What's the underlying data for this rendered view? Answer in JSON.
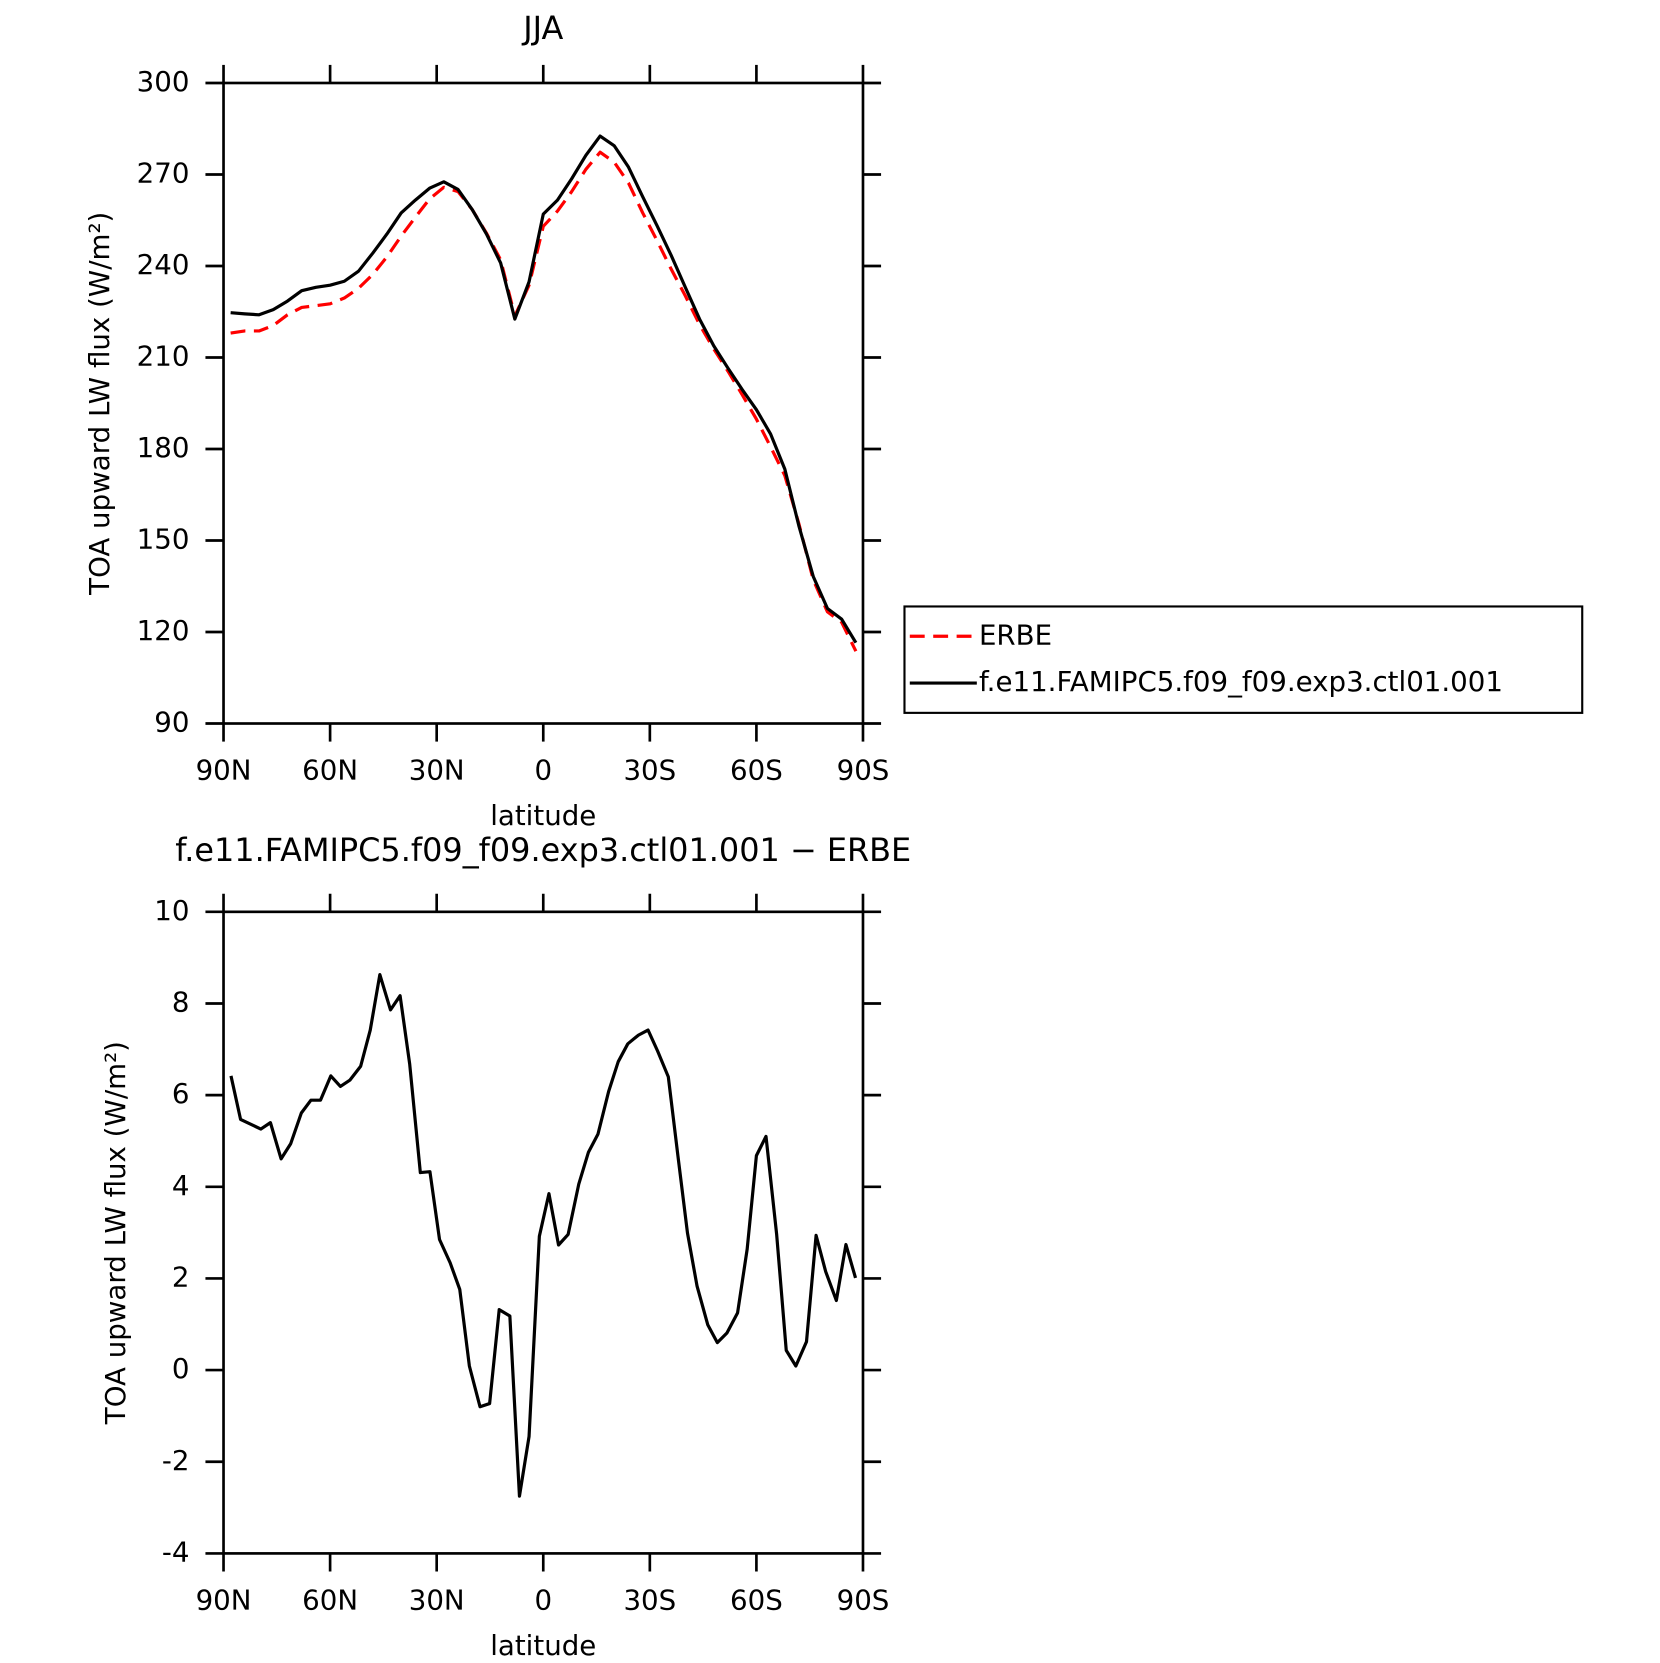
{
  "chart_data": [
    {
      "type": "line",
      "title": "JJA",
      "xlabel": "latitude",
      "ylabel": "TOA upward LW flux (W/m²)",
      "x": [
        88,
        84,
        80,
        76,
        72,
        68,
        64,
        60,
        56,
        52,
        48,
        44,
        40,
        36,
        32,
        28,
        24,
        20,
        16,
        12,
        8,
        4,
        0,
        -4,
        -8,
        -12,
        -16,
        -20,
        -24,
        -28,
        -32,
        -36,
        -40,
        -44,
        -48,
        -52,
        -56,
        -60,
        -64,
        -68,
        -72,
        -76,
        -80,
        -84,
        -88
      ],
      "series": [
        {
          "name": "ERBE",
          "color": "#ff0000",
          "dash": "dashed",
          "values": [
            218,
            218.7,
            218.7,
            220.5,
            224,
            226.4,
            227,
            227.6,
            229.5,
            232.7,
            237.2,
            243,
            249.8,
            256,
            262,
            265.8,
            264.4,
            258.5,
            250.8,
            242,
            223.6,
            233.7,
            253,
            258,
            264.4,
            271.7,
            277.3,
            274,
            267.2,
            257.4,
            248.4,
            239,
            230.2,
            220.8,
            212.8,
            205.5,
            197.8,
            189.8,
            180.7,
            171.3,
            155.3,
            137.1,
            126.6,
            123.2,
            113.7
          ]
        },
        {
          "name": "f.e11.FAMIPC5.f09_f09.exp3.ctl01.001",
          "color": "#000000",
          "dash": "solid",
          "values": [
            224.7,
            224.3,
            224,
            225.7,
            228.5,
            231.9,
            233,
            233.7,
            235,
            238.3,
            244.2,
            250.5,
            257.4,
            261.6,
            265.5,
            267.6,
            265.1,
            258.5,
            250.5,
            241,
            222.6,
            234.8,
            257,
            261.6,
            268.6,
            276.3,
            282.6,
            279.4,
            272.4,
            262.7,
            253.3,
            243.5,
            233,
            222.6,
            213.8,
            206.5,
            199.5,
            192.9,
            184.9,
            173.4,
            154.6,
            138.2,
            127.7,
            124.2,
            116.5
          ]
        }
      ],
      "xlim": [
        90,
        -90
      ],
      "xticks": [
        {
          "value": 90,
          "label": "90N"
        },
        {
          "value": 60,
          "label": "60N"
        },
        {
          "value": 30,
          "label": "30N"
        },
        0,
        {
          "value": -30,
          "label": "30S"
        },
        {
          "value": -60,
          "label": "60S"
        },
        {
          "value": -90,
          "label": "90S"
        }
      ],
      "ylim": [
        90,
        300
      ],
      "yticks": [
        90,
        120,
        150,
        180,
        210,
        240,
        270,
        300
      ],
      "legend": "right"
    },
    {
      "type": "line",
      "title": "f.e11.FAMIPC5.f09_f09.exp3.ctl01.001 − ERBE",
      "xlabel": "latitude",
      "ylabel": "TOA upward LW flux (W/m²)",
      "x": [
        87.9,
        85.2,
        79.5,
        76.8,
        73.8,
        71.1,
        68.1,
        65.4,
        62.7,
        59.8,
        57.1,
        54.4,
        51.4,
        48.7,
        46.0,
        43.0,
        40.3,
        37.6,
        34.6,
        31.9,
        29.2,
        26.2,
        23.5,
        20.8,
        17.8,
        15.1,
        12.4,
        9.4,
        6.7,
        4.0,
        1.1,
        -1.6,
        -4.3,
        -7.0,
        -10.0,
        -12.7,
        -15.4,
        -18.4,
        -21.1,
        -23.8,
        -26.8,
        -29.5,
        -32.2,
        -35.2,
        -37.9,
        -40.6,
        -43.3,
        -46.3,
        -49.0,
        -51.7,
        -54.7,
        -57.4,
        -60.0,
        -62.7,
        -65.7,
        -68.4,
        -71.1,
        -74.1,
        -76.8,
        -79.5,
        -82.5,
        -85.2,
        -87.9
      ],
      "values": [
        6.42,
        5.47,
        5.26,
        5.4,
        4.61,
        4.94,
        5.61,
        5.89,
        5.89,
        6.42,
        6.19,
        6.33,
        6.63,
        7.42,
        8.63,
        7.86,
        8.17,
        6.68,
        4.31,
        4.33,
        2.85,
        2.34,
        1.76,
        0.09,
        -0.8,
        -0.73,
        1.32,
        1.18,
        -2.75,
        -1.45,
        2.92,
        3.85,
        2.73,
        2.96,
        4.06,
        4.75,
        5.15,
        6.08,
        6.73,
        7.12,
        7.31,
        7.42,
        6.96,
        6.4,
        4.68,
        2.99,
        1.83,
        0.99,
        0.6,
        0.81,
        1.25,
        2.64,
        4.68,
        5.1,
        2.96,
        0.43,
        0.09,
        0.62,
        2.94,
        2.15,
        1.52,
        2.74,
        2.01
      ],
      "color": "#000000",
      "xlim": [
        90,
        -90
      ],
      "xticks": [
        {
          "value": 90,
          "label": "90N"
        },
        {
          "value": 60,
          "label": "60N"
        },
        {
          "value": 30,
          "label": "30N"
        },
        0,
        {
          "value": -30,
          "label": "30S"
        },
        {
          "value": -60,
          "label": "60S"
        },
        {
          "value": -90,
          "label": "90S"
        }
      ],
      "ylim": [
        -4,
        10
      ],
      "yticks": [
        -4,
        -2,
        0,
        2,
        4,
        6,
        8,
        10
      ]
    }
  ]
}
